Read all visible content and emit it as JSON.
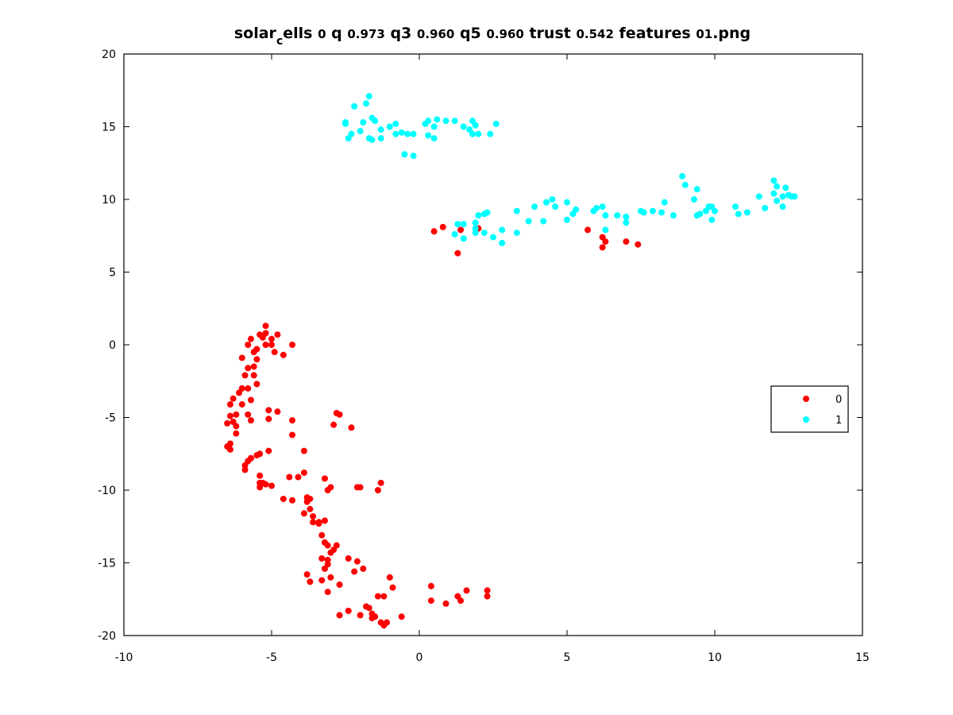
{
  "chart_data": {
    "type": "scatter",
    "title": "solar_cells 0 q 0.973 q3 0.960 q5 0.960 trust 0.542 features 01.png",
    "title_parts": {
      "pre": "solar",
      "sub": "c",
      "mid": "ells ",
      "n0": "0",
      "q": " q ",
      "n1": "0.973",
      "q3": " q3 ",
      "n2": "0.960",
      "q5": " q5 ",
      "n3": "0.960",
      "trust": " trust ",
      "n4": "0.542",
      "features": " features ",
      "n5": "01",
      "ext": ".png"
    },
    "xlim": [
      -10,
      15
    ],
    "ylim": [
      -20,
      20
    ],
    "x_ticks": [
      -10,
      -5,
      0,
      5,
      10,
      15
    ],
    "y_ticks": [
      -20,
      -15,
      -10,
      -5,
      0,
      5,
      10,
      15,
      20
    ],
    "x_tick_labels": [
      "-10",
      "-5",
      "0",
      "5",
      "10",
      "15"
    ],
    "y_tick_labels": [
      "-20",
      "-15",
      "-10",
      "-5",
      "0",
      "5",
      "10",
      "15",
      "20"
    ],
    "grid": false,
    "legend_position": "right",
    "series": [
      {
        "name": "0",
        "color": "#ff0000",
        "points": [
          [
            -5.2,
            1.3
          ],
          [
            -5.4,
            0.7
          ],
          [
            -5.2,
            0.8
          ],
          [
            -5.3,
            0.5
          ],
          [
            -4.8,
            0.7
          ],
          [
            -5.0,
            0.4
          ],
          [
            -5.7,
            0.4
          ],
          [
            -5.8,
            0.0
          ],
          [
            -5.2,
            0.0
          ],
          [
            -5.0,
            0.0
          ],
          [
            -4.3,
            0.0
          ],
          [
            -4.9,
            -0.5
          ],
          [
            -4.6,
            -0.7
          ],
          [
            -5.5,
            -0.3
          ],
          [
            -5.6,
            -0.5
          ],
          [
            -6.0,
            -0.9
          ],
          [
            -5.5,
            -1.0
          ],
          [
            -5.6,
            -1.5
          ],
          [
            -5.8,
            -1.6
          ],
          [
            -5.6,
            -2.1
          ],
          [
            -5.9,
            -2.1
          ],
          [
            -5.5,
            -2.7
          ],
          [
            -5.8,
            -3.0
          ],
          [
            -6.0,
            -3.0
          ],
          [
            -6.1,
            -3.3
          ],
          [
            -6.3,
            -3.7
          ],
          [
            -5.7,
            -3.8
          ],
          [
            -6.0,
            -4.1
          ],
          [
            -6.4,
            -4.1
          ],
          [
            -6.2,
            -4.8
          ],
          [
            -6.4,
            -4.9
          ],
          [
            -5.8,
            -4.8
          ],
          [
            -5.7,
            -5.2
          ],
          [
            -6.3,
            -5.3
          ],
          [
            -6.5,
            -5.4
          ],
          [
            -6.2,
            -5.6
          ],
          [
            -6.2,
            -6.1
          ],
          [
            -6.4,
            -6.8
          ],
          [
            -6.4,
            -7.2
          ],
          [
            -6.5,
            -7.0
          ],
          [
            -5.7,
            -7.8
          ],
          [
            -5.4,
            -7.5
          ],
          [
            -5.5,
            -7.6
          ],
          [
            -5.1,
            -7.3
          ],
          [
            -5.8,
            -8.0
          ],
          [
            -5.9,
            -8.3
          ],
          [
            -5.9,
            -8.6
          ],
          [
            -5.4,
            -9.0
          ],
          [
            -5.4,
            -9.5
          ],
          [
            -5.3,
            -9.5
          ],
          [
            -5.4,
            -9.8
          ],
          [
            -5.2,
            -9.6
          ],
          [
            -5.0,
            -9.7
          ],
          [
            -5.1,
            -4.5
          ],
          [
            -5.1,
            -5.1
          ],
          [
            -4.8,
            -4.6
          ],
          [
            -4.3,
            -5.2
          ],
          [
            -4.3,
            -6.2
          ],
          [
            -3.9,
            -7.3
          ],
          [
            -3.9,
            -8.8
          ],
          [
            -4.4,
            -9.1
          ],
          [
            -4.1,
            -9.1
          ],
          [
            -4.6,
            -10.6
          ],
          [
            -4.3,
            -10.7
          ],
          [
            -3.8,
            -10.5
          ],
          [
            -3.7,
            -10.6
          ],
          [
            -3.8,
            -10.8
          ],
          [
            -3.9,
            -11.6
          ],
          [
            -3.7,
            -11.3
          ],
          [
            -3.6,
            -11.8
          ],
          [
            -3.6,
            -12.2
          ],
          [
            -3.4,
            -12.2
          ],
          [
            -3.2,
            -12.1
          ],
          [
            -3.4,
            -12.3
          ],
          [
            -3.2,
            -9.2
          ],
          [
            -3.0,
            -9.8
          ],
          [
            -3.1,
            -10.0
          ],
          [
            -2.8,
            -4.7
          ],
          [
            -2.7,
            -4.8
          ],
          [
            -2.3,
            -5.7
          ],
          [
            -2.9,
            -5.5
          ],
          [
            -2.1,
            -9.8
          ],
          [
            -2.0,
            -9.8
          ],
          [
            -1.3,
            -9.5
          ],
          [
            -1.4,
            -10.0
          ],
          [
            -3.3,
            -13.1
          ],
          [
            -3.2,
            -13.6
          ],
          [
            -3.1,
            -13.8
          ],
          [
            -2.8,
            -13.8
          ],
          [
            -2.9,
            -14.1
          ],
          [
            -3.0,
            -14.3
          ],
          [
            -3.3,
            -14.7
          ],
          [
            -3.1,
            -14.8
          ],
          [
            -3.1,
            -15.1
          ],
          [
            -3.2,
            -15.4
          ],
          [
            -2.4,
            -14.7
          ],
          [
            -2.1,
            -14.9
          ],
          [
            -1.9,
            -15.4
          ],
          [
            -2.2,
            -15.6
          ],
          [
            -3.8,
            -15.8
          ],
          [
            -3.7,
            -16.3
          ],
          [
            -3.3,
            -16.2
          ],
          [
            -3.0,
            -16.0
          ],
          [
            -2.7,
            -16.5
          ],
          [
            -3.1,
            -17.0
          ],
          [
            -1.0,
            -16.0
          ],
          [
            -0.9,
            -16.7
          ],
          [
            -1.4,
            -17.3
          ],
          [
            -1.2,
            -17.3
          ],
          [
            -1.8,
            -18.0
          ],
          [
            -1.7,
            -18.1
          ],
          [
            -2.4,
            -18.3
          ],
          [
            -2.7,
            -18.6
          ],
          [
            -2.0,
            -18.6
          ],
          [
            -1.6,
            -18.5
          ],
          [
            -1.6,
            -18.8
          ],
          [
            -1.5,
            -18.7
          ],
          [
            -1.3,
            -19.1
          ],
          [
            -1.1,
            -19.1
          ],
          [
            -1.2,
            -19.3
          ],
          [
            -0.6,
            -18.7
          ],
          [
            0.4,
            -16.6
          ],
          [
            0.4,
            -17.6
          ],
          [
            0.9,
            -17.8
          ],
          [
            1.3,
            -17.3
          ],
          [
            1.4,
            -17.6
          ],
          [
            1.6,
            -16.9
          ],
          [
            2.3,
            -16.9
          ],
          [
            2.3,
            -17.3
          ],
          [
            0.5,
            7.8
          ],
          [
            0.8,
            8.1
          ],
          [
            1.4,
            7.9
          ],
          [
            2.0,
            8.0
          ],
          [
            1.3,
            6.3
          ],
          [
            5.7,
            7.9
          ],
          [
            6.2,
            7.4
          ],
          [
            6.3,
            7.1
          ],
          [
            6.2,
            6.7
          ],
          [
            7.0,
            7.1
          ],
          [
            7.4,
            6.9
          ]
        ]
      },
      {
        "name": "1",
        "color": "#00ffff",
        "points": [
          [
            -1.7,
            17.1
          ],
          [
            -1.8,
            16.6
          ],
          [
            -2.2,
            16.4
          ],
          [
            -2.5,
            15.3
          ],
          [
            -2.5,
            15.2
          ],
          [
            -1.9,
            15.3
          ],
          [
            -1.6,
            15.6
          ],
          [
            -1.5,
            15.4
          ],
          [
            -2.0,
            14.7
          ],
          [
            -2.3,
            14.5
          ],
          [
            -2.4,
            14.2
          ],
          [
            -1.7,
            14.2
          ],
          [
            -1.6,
            14.1
          ],
          [
            -1.3,
            14.8
          ],
          [
            -1.3,
            14.2
          ],
          [
            -1.0,
            15.0
          ],
          [
            -0.8,
            15.2
          ],
          [
            -0.8,
            14.5
          ],
          [
            -0.6,
            14.6
          ],
          [
            -0.4,
            14.5
          ],
          [
            -0.2,
            14.5
          ],
          [
            -0.5,
            13.1
          ],
          [
            -0.2,
            13.0
          ],
          [
            0.2,
            15.2
          ],
          [
            0.3,
            15.4
          ],
          [
            0.6,
            15.5
          ],
          [
            0.9,
            15.4
          ],
          [
            1.2,
            15.4
          ],
          [
            0.5,
            15.0
          ],
          [
            0.3,
            14.4
          ],
          [
            0.5,
            14.2
          ],
          [
            1.5,
            15.0
          ],
          [
            1.7,
            14.8
          ],
          [
            1.8,
            15.4
          ],
          [
            1.9,
            15.1
          ],
          [
            1.8,
            14.5
          ],
          [
            2.0,
            14.5
          ],
          [
            2.4,
            14.5
          ],
          [
            2.6,
            15.2
          ],
          [
            1.3,
            8.3
          ],
          [
            1.5,
            8.3
          ],
          [
            1.2,
            7.6
          ],
          [
            1.5,
            7.3
          ],
          [
            1.9,
            8.4
          ],
          [
            1.9,
            8.0
          ],
          [
            1.9,
            7.7
          ],
          [
            2.2,
            7.7
          ],
          [
            2.5,
            7.4
          ],
          [
            2.3,
            9.1
          ],
          [
            2.0,
            8.9
          ],
          [
            2.2,
            9.0
          ],
          [
            2.8,
            7.9
          ],
          [
            2.8,
            7.0
          ],
          [
            3.3,
            7.7
          ],
          [
            3.3,
            9.2
          ],
          [
            3.7,
            8.5
          ],
          [
            3.9,
            9.5
          ],
          [
            4.2,
            8.5
          ],
          [
            4.3,
            9.8
          ],
          [
            4.5,
            10.0
          ],
          [
            4.6,
            9.5
          ],
          [
            5.0,
            9.8
          ],
          [
            5.0,
            8.6
          ],
          [
            5.2,
            9.0
          ],
          [
            5.3,
            9.3
          ],
          [
            5.9,
            9.2
          ],
          [
            6.0,
            9.4
          ],
          [
            6.2,
            9.5
          ],
          [
            6.3,
            8.9
          ],
          [
            6.3,
            7.9
          ],
          [
            6.7,
            8.9
          ],
          [
            7.0,
            8.8
          ],
          [
            7.0,
            8.4
          ],
          [
            7.5,
            9.2
          ],
          [
            7.6,
            9.1
          ],
          [
            7.9,
            9.2
          ],
          [
            8.2,
            9.1
          ],
          [
            8.3,
            9.8
          ],
          [
            8.6,
            8.9
          ],
          [
            8.9,
            11.6
          ],
          [
            9.0,
            11.0
          ],
          [
            9.4,
            10.7
          ],
          [
            9.3,
            10.0
          ],
          [
            9.4,
            8.9
          ],
          [
            9.5,
            9.0
          ],
          [
            9.7,
            9.2
          ],
          [
            9.8,
            9.5
          ],
          [
            9.9,
            9.5
          ],
          [
            10.0,
            9.2
          ],
          [
            9.9,
            8.6
          ],
          [
            10.7,
            9.5
          ],
          [
            10.8,
            9.0
          ],
          [
            11.1,
            9.1
          ],
          [
            11.5,
            10.2
          ],
          [
            11.7,
            9.4
          ],
          [
            12.0,
            11.3
          ],
          [
            12.1,
            10.9
          ],
          [
            12.0,
            10.4
          ],
          [
            12.1,
            9.9
          ],
          [
            12.3,
            9.5
          ],
          [
            12.3,
            10.2
          ],
          [
            12.4,
            10.8
          ],
          [
            12.5,
            10.3
          ],
          [
            12.6,
            10.2
          ],
          [
            12.7,
            10.2
          ]
        ]
      }
    ]
  }
}
